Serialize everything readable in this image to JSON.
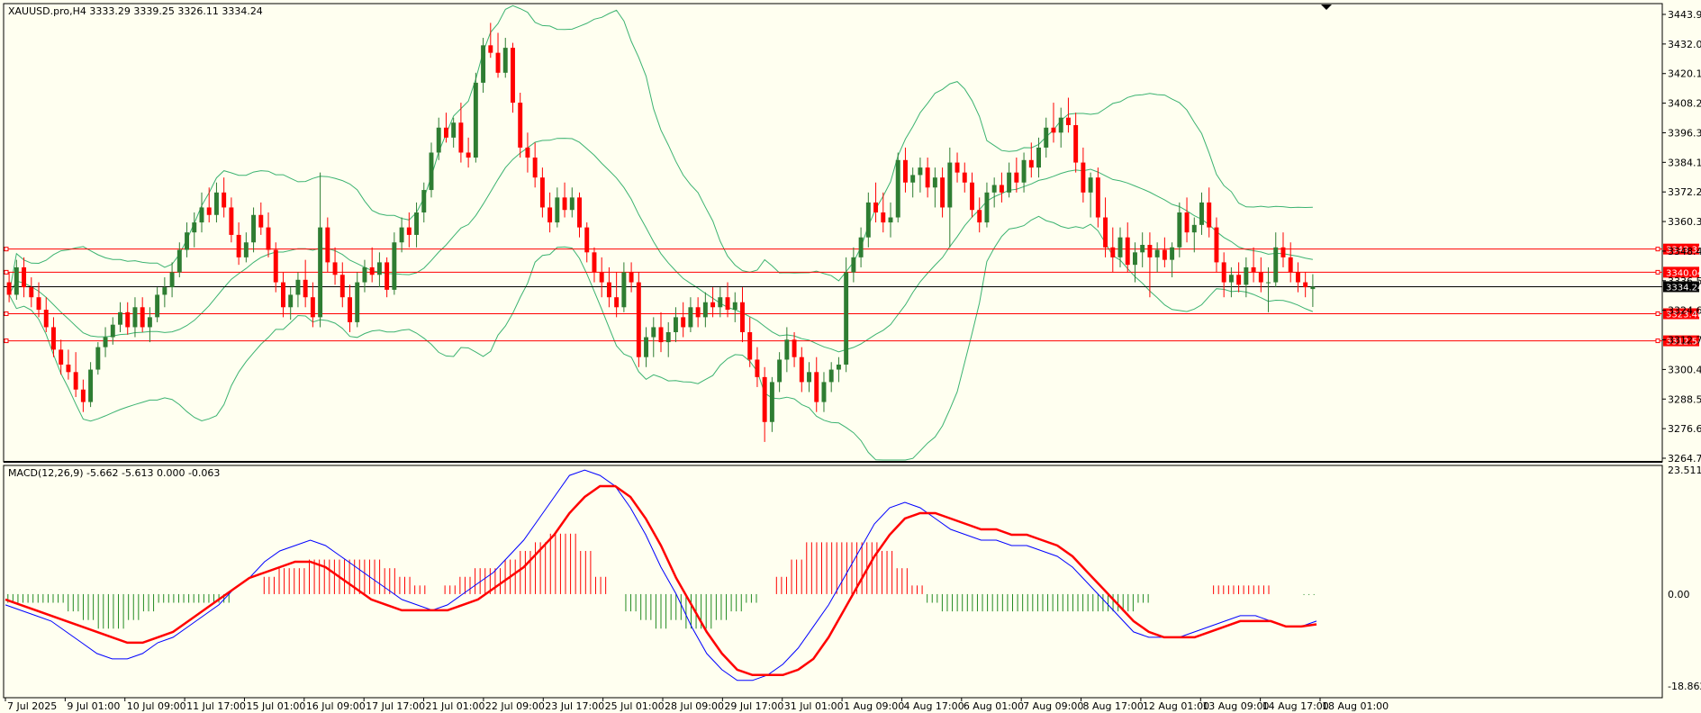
{
  "main_info": "XAUUSD.pro,H4  3333.29 3339.25 3326.11 3334.24",
  "macd_info": "MACD(12,26,9) -5.662 -5.613 0.000 -0.063",
  "colors": {
    "background": "#fffff0",
    "bull_candle": "#2e7d32",
    "bear_candle": "#ff0000",
    "bollinger": "#3cb371",
    "hline": "#ff0000",
    "price_line": "#000000",
    "macd_line": "#0000ff",
    "signal_line": "#ff0000",
    "hist_pos": "#ff0000",
    "hist_neg": "#228b22"
  },
  "price_axis_ticks": [
    "3443.95",
    "3432.05",
    "3420.15",
    "3408.25",
    "3396.35",
    "3384.10",
    "3372.20",
    "3360.30",
    "3348.40",
    "3336.50",
    "3324.60",
    "3312.70",
    "3300.45",
    "3288.55",
    "3276.65",
    "3264.75"
  ],
  "macd_axis_ticks": [
    "23.511",
    "0.00",
    "-18.862"
  ],
  "time_axis_labels": [
    "7 Jul 2025",
    "9 Jul 01:00",
    "10 Jul 09:00",
    "11 Jul 17:00",
    "15 Jul 01:00",
    "16 Jul 09:00",
    "17 Jul 17:00",
    "21 Jul 01:00",
    "22 Jul 09:00",
    "23 Jul 17:00",
    "25 Jul 01:00",
    "28 Jul 09:00",
    "29 Jul 17:00",
    "31 Jul 01:00",
    "1 Aug 09:00",
    "4 Aug 17:00",
    "6 Aug 01:00",
    "7 Aug 09:00",
    "8 Aug 17:00",
    "12 Aug 01:00",
    "13 Aug 09:00",
    "14 Aug 17:00",
    "18 Aug 01:00"
  ],
  "horizontal_levels": [
    "3349.32",
    "3340.04",
    "3323.40",
    "3312.54"
  ],
  "current_price": "3334.24",
  "chart_data": [
    {
      "type": "candlestick",
      "title": "XAUUSD.pro,H4",
      "ylim": [
        3264.75,
        3447
      ],
      "ohlc": [
        [
          3336,
          3340,
          3328,
          3331
        ],
        [
          3331,
          3345,
          3329,
          3342
        ],
        [
          3342,
          3346,
          3330,
          3334
        ],
        [
          3334,
          3338,
          3326,
          3330
        ],
        [
          3330,
          3336,
          3322,
          3325
        ],
        [
          3325,
          3330,
          3316,
          3318
        ],
        [
          3318,
          3322,
          3306,
          3309
        ],
        [
          3309,
          3313,
          3299,
          3303
        ],
        [
          3303,
          3309,
          3297,
          3300
        ],
        [
          3300,
          3308,
          3290,
          3293
        ],
        [
          3293,
          3297,
          3284,
          3288
        ],
        [
          3288,
          3304,
          3286,
          3301
        ],
        [
          3301,
          3312,
          3299,
          3310
        ],
        [
          3310,
          3318,
          3306,
          3314
        ],
        [
          3314,
          3322,
          3311,
          3319
        ],
        [
          3319,
          3328,
          3316,
          3324
        ],
        [
          3324,
          3328,
          3315,
          3318
        ],
        [
          3318,
          3330,
          3314,
          3326
        ],
        [
          3326,
          3330,
          3316,
          3318
        ],
        [
          3318,
          3326,
          3312,
          3322
        ],
        [
          3322,
          3334,
          3320,
          3331
        ],
        [
          3331,
          3338,
          3326,
          3334
        ],
        [
          3334,
          3344,
          3330,
          3340
        ],
        [
          3340,
          3352,
          3338,
          3349
        ],
        [
          3349,
          3360,
          3346,
          3356
        ],
        [
          3356,
          3364,
          3350,
          3360
        ],
        [
          3360,
          3372,
          3356,
          3366
        ],
        [
          3366,
          3374,
          3360,
          3363
        ],
        [
          3363,
          3376,
          3360,
          3372
        ],
        [
          3372,
          3378,
          3362,
          3366
        ],
        [
          3366,
          3370,
          3352,
          3355
        ],
        [
          3355,
          3360,
          3343,
          3346
        ],
        [
          3346,
          3356,
          3344,
          3352
        ],
        [
          3352,
          3366,
          3348,
          3363
        ],
        [
          3363,
          3368,
          3355,
          3358
        ],
        [
          3358,
          3364,
          3346,
          3349
        ],
        [
          3349,
          3352,
          3332,
          3336
        ],
        [
          3336,
          3340,
          3322,
          3326
        ],
        [
          3326,
          3334,
          3321,
          3331
        ],
        [
          3331,
          3340,
          3326,
          3337
        ],
        [
          3337,
          3345,
          3326,
          3330
        ],
        [
          3330,
          3336,
          3318,
          3322
        ],
        [
          3322,
          3380,
          3318,
          3358
        ],
        [
          3358,
          3362,
          3340,
          3344
        ],
        [
          3344,
          3350,
          3335,
          3339
        ],
        [
          3339,
          3344,
          3326,
          3330
        ],
        [
          3330,
          3335,
          3316,
          3320
        ],
        [
          3320,
          3340,
          3318,
          3336
        ],
        [
          3336,
          3345,
          3332,
          3342
        ],
        [
          3342,
          3350,
          3336,
          3339
        ],
        [
          3339,
          3348,
          3334,
          3344
        ],
        [
          3344,
          3346,
          3330,
          3333
        ],
        [
          3333,
          3356,
          3331,
          3352
        ],
        [
          3352,
          3362,
          3348,
          3358
        ],
        [
          3358,
          3364,
          3350,
          3355
        ],
        [
          3355,
          3368,
          3350,
          3364
        ],
        [
          3364,
          3376,
          3360,
          3373
        ],
        [
          3373,
          3392,
          3370,
          3388
        ],
        [
          3388,
          3402,
          3385,
          3398
        ],
        [
          3398,
          3404,
          3392,
          3394
        ],
        [
          3394,
          3402,
          3390,
          3400
        ],
        [
          3400,
          3408,
          3384,
          3388
        ],
        [
          3388,
          3394,
          3382,
          3386
        ],
        [
          3386,
          3420,
          3384,
          3416
        ],
        [
          3416,
          3434,
          3412,
          3431
        ],
        [
          3431,
          3440,
          3426,
          3428
        ],
        [
          3428,
          3436,
          3418,
          3420
        ],
        [
          3420,
          3434,
          3418,
          3430
        ],
        [
          3430,
          3432,
          3404,
          3408
        ],
        [
          3408,
          3412,
          3386,
          3390
        ],
        [
          3390,
          3396,
          3380,
          3386
        ],
        [
          3386,
          3392,
          3374,
          3378
        ],
        [
          3378,
          3382,
          3362,
          3366
        ],
        [
          3366,
          3372,
          3356,
          3360
        ],
        [
          3360,
          3374,
          3358,
          3370
        ],
        [
          3370,
          3376,
          3362,
          3365
        ],
        [
          3365,
          3374,
          3362,
          3370
        ],
        [
          3370,
          3372,
          3354,
          3358
        ],
        [
          3358,
          3360,
          3344,
          3348
        ],
        [
          3348,
          3350,
          3336,
          3340
        ],
        [
          3340,
          3346,
          3330,
          3336
        ],
        [
          3336,
          3342,
          3326,
          3330
        ],
        [
          3330,
          3340,
          3322,
          3326
        ],
        [
          3326,
          3344,
          3324,
          3340
        ],
        [
          3340,
          3344,
          3332,
          3336
        ],
        [
          3336,
          3340,
          3302,
          3306
        ],
        [
          3306,
          3318,
          3302,
          3314
        ],
        [
          3314,
          3322,
          3306,
          3318
        ],
        [
          3318,
          3324,
          3308,
          3312
        ],
        [
          3312,
          3320,
          3306,
          3316
        ],
        [
          3316,
          3326,
          3312,
          3322
        ],
        [
          3322,
          3328,
          3314,
          3318
        ],
        [
          3318,
          3330,
          3316,
          3326
        ],
        [
          3326,
          3330,
          3318,
          3322
        ],
        [
          3322,
          3332,
          3318,
          3328
        ],
        [
          3328,
          3334,
          3322,
          3326
        ],
        [
          3326,
          3334,
          3322,
          3330
        ],
        [
          3330,
          3336,
          3322,
          3325
        ],
        [
          3325,
          3332,
          3320,
          3328
        ],
        [
          3328,
          3334,
          3312,
          3316
        ],
        [
          3316,
          3322,
          3302,
          3305
        ],
        [
          3305,
          3310,
          3294,
          3298
        ],
        [
          3298,
          3302,
          3272,
          3280
        ],
        [
          3280,
          3298,
          3276,
          3296
        ],
        [
          3296,
          3308,
          3292,
          3305
        ],
        [
          3305,
          3318,
          3300,
          3313
        ],
        [
          3313,
          3316,
          3302,
          3306
        ],
        [
          3306,
          3310,
          3292,
          3296
        ],
        [
          3296,
          3304,
          3292,
          3300
        ],
        [
          3300,
          3306,
          3284,
          3288
        ],
        [
          3288,
          3300,
          3284,
          3296
        ],
        [
          3296,
          3304,
          3292,
          3301
        ],
        [
          3301,
          3306,
          3296,
          3303
        ],
        [
          3303,
          3346,
          3300,
          3340
        ],
        [
          3340,
          3350,
          3336,
          3346
        ],
        [
          3346,
          3358,
          3342,
          3354
        ],
        [
          3354,
          3372,
          3350,
          3368
        ],
        [
          3368,
          3376,
          3360,
          3364
        ],
        [
          3364,
          3372,
          3356,
          3360
        ],
        [
          3360,
          3368,
          3354,
          3362
        ],
        [
          3362,
          3388,
          3360,
          3385
        ],
        [
          3385,
          3390,
          3372,
          3376
        ],
        [
          3376,
          3382,
          3370,
          3379
        ],
        [
          3379,
          3386,
          3372,
          3382
        ],
        [
          3382,
          3386,
          3370,
          3374
        ],
        [
          3374,
          3382,
          3366,
          3378
        ],
        [
          3378,
          3382,
          3362,
          3366
        ],
        [
          3366,
          3390,
          3350,
          3384
        ],
        [
          3384,
          3388,
          3376,
          3380
        ],
        [
          3380,
          3384,
          3372,
          3376
        ],
        [
          3376,
          3380,
          3362,
          3365
        ],
        [
          3365,
          3370,
          3356,
          3360
        ],
        [
          3360,
          3376,
          3358,
          3372
        ],
        [
          3372,
          3378,
          3366,
          3375
        ],
        [
          3375,
          3380,
          3368,
          3372
        ],
        [
          3372,
          3384,
          3370,
          3380
        ],
        [
          3380,
          3386,
          3372,
          3376
        ],
        [
          3376,
          3388,
          3372,
          3385
        ],
        [
          3385,
          3392,
          3378,
          3382
        ],
        [
          3382,
          3394,
          3378,
          3390
        ],
        [
          3390,
          3402,
          3386,
          3398
        ],
        [
          3398,
          3408,
          3392,
          3396
        ],
        [
          3396,
          3406,
          3390,
          3402
        ],
        [
          3402,
          3410,
          3396,
          3399
        ],
        [
          3399,
          3404,
          3380,
          3384
        ],
        [
          3384,
          3390,
          3368,
          3372
        ],
        [
          3372,
          3380,
          3362,
          3378
        ],
        [
          3378,
          3382,
          3358,
          3362
        ],
        [
          3362,
          3370,
          3346,
          3350
        ],
        [
          3350,
          3358,
          3340,
          3346
        ],
        [
          3346,
          3358,
          3342,
          3354
        ],
        [
          3354,
          3360,
          3340,
          3343
        ],
        [
          3343,
          3352,
          3336,
          3348
        ],
        [
          3348,
          3356,
          3342,
          3351
        ],
        [
          3351,
          3356,
          3330,
          3346
        ],
        [
          3346,
          3352,
          3340,
          3349
        ],
        [
          3349,
          3354,
          3342,
          3345
        ],
        [
          3345,
          3352,
          3338,
          3350
        ],
        [
          3350,
          3368,
          3346,
          3364
        ],
        [
          3364,
          3370,
          3352,
          3356
        ],
        [
          3356,
          3362,
          3348,
          3359
        ],
        [
          3359,
          3372,
          3355,
          3368
        ],
        [
          3368,
          3374,
          3354,
          3358
        ],
        [
          3358,
          3362,
          3340,
          3344
        ],
        [
          3344,
          3348,
          3330,
          3336
        ],
        [
          3336,
          3342,
          3330,
          3339
        ],
        [
          3339,
          3344,
          3332,
          3335
        ],
        [
          3335,
          3346,
          3330,
          3342
        ],
        [
          3342,
          3350,
          3336,
          3340
        ],
        [
          3340,
          3346,
          3332,
          3336
        ],
        [
          3336,
          3342,
          3324,
          3336
        ],
        [
          3336,
          3356,
          3334,
          3350
        ],
        [
          3350,
          3356,
          3342,
          3346
        ],
        [
          3346,
          3352,
          3336,
          3340
        ],
        [
          3340,
          3344,
          3332,
          3336
        ],
        [
          3336,
          3340,
          3330,
          3334
        ],
        [
          3333.29,
          3339.25,
          3326.11,
          3334.24
        ]
      ]
    },
    {
      "type": "line",
      "title": "MACD(12,26,9)",
      "ylim": [
        -18.862,
        23.511
      ],
      "macd": [
        -2,
        -3,
        -4,
        -5,
        -7,
        -9,
        -11,
        -12,
        -12,
        -11,
        -9,
        -8,
        -6,
        -4,
        -2,
        1,
        3,
        6,
        8,
        9,
        10,
        9,
        7,
        5,
        3,
        1,
        -1,
        -2,
        -3,
        -2,
        0,
        2,
        4,
        7,
        10,
        14,
        18,
        22,
        23,
        22,
        20,
        16,
        11,
        5,
        0,
        -6,
        -11,
        -14,
        -16,
        -16,
        -15,
        -13,
        -10,
        -6,
        -2,
        3,
        8,
        13,
        16,
        17,
        16,
        14,
        12,
        11,
        10,
        10,
        9,
        9,
        8,
        7,
        5,
        2,
        -1,
        -4,
        -7,
        -8,
        -8,
        -8,
        -7,
        -6,
        -5,
        -4,
        -4,
        -5,
        -6,
        -6,
        -5
      ],
      "signal": [
        -1,
        -2,
        -3,
        -4,
        -5,
        -6,
        -7,
        -8,
        -9,
        -9,
        -8,
        -7,
        -5,
        -3,
        -1,
        1,
        3,
        4,
        5,
        6,
        6,
        5,
        3,
        1,
        -1,
        -2,
        -3,
        -3,
        -3,
        -3,
        -2,
        -1,
        1,
        3,
        5,
        8,
        11,
        15,
        18,
        20,
        20,
        18,
        14,
        9,
        3,
        -2,
        -7,
        -11,
        -14,
        -15,
        -15,
        -15,
        -14,
        -12,
        -8,
        -3,
        2,
        7,
        11,
        14,
        15,
        15,
        14,
        13,
        12,
        12,
        11,
        11,
        10,
        9,
        7,
        4,
        1,
        -2,
        -5,
        -7,
        -8,
        -8,
        -8,
        -7,
        -6,
        -5,
        -5,
        -5,
        -6,
        -6,
        -5.6
      ],
      "histogram": [
        -1,
        -1,
        -1,
        -1,
        -2,
        -3,
        -4,
        -4,
        -3,
        -2,
        -1,
        -1,
        -1,
        -1,
        -1,
        0,
        0,
        2,
        3,
        3,
        4,
        4,
        4,
        4,
        4,
        3,
        2,
        1,
        0,
        1,
        2,
        3,
        3,
        4,
        5,
        6,
        7,
        7,
        5,
        2,
        0,
        -2,
        -3,
        -4,
        -3,
        -4,
        -4,
        -3,
        -2,
        -1,
        0,
        2,
        4,
        6,
        6,
        6,
        6,
        6,
        5,
        3,
        1,
        -1,
        -2,
        -2,
        -2,
        -2,
        -2,
        -2,
        -2,
        -2,
        -2,
        -2,
        -2,
        -2,
        -2,
        -1,
        0,
        0,
        0,
        0,
        1,
        1,
        1,
        1,
        0,
        0,
        -0.1
      ]
    }
  ]
}
